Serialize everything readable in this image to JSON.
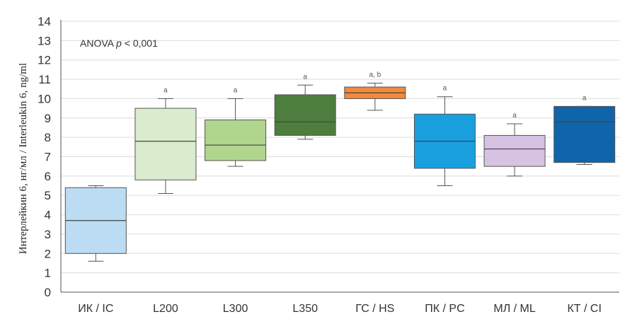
{
  "chart_data": {
    "type": "box",
    "ylabel": "Интерлейкин 6, нг/мл / Interleukin 6, ng/ml",
    "ylim": [
      0,
      14
    ],
    "yticks": [
      0,
      1,
      2,
      3,
      4,
      5,
      6,
      7,
      8,
      9,
      10,
      11,
      12,
      13,
      14
    ],
    "grid": true,
    "annotation": {
      "prefix": "ANOVA ",
      "p_symbol": "p",
      "suffix": " < 0,001"
    },
    "categories": [
      "ИК / IC",
      "L200",
      "L300",
      "L350",
      "ГС / HS",
      "ПК / PC",
      "МЛ / ML",
      "КТ / CI"
    ],
    "boxes": [
      {
        "category": "ИК / IC",
        "min": 1.6,
        "q1": 2.0,
        "median": 3.7,
        "q3": 5.4,
        "max": 5.5,
        "label": "",
        "color": "#bcdcf3"
      },
      {
        "category": "L200",
        "min": 5.1,
        "q1": 5.8,
        "median": 7.8,
        "q3": 9.5,
        "max": 10.0,
        "label": "a",
        "color": "#daeccd"
      },
      {
        "category": "L300",
        "min": 6.5,
        "q1": 6.8,
        "median": 7.6,
        "q3": 8.9,
        "max": 10.0,
        "label": "a",
        "color": "#b0d58d"
      },
      {
        "category": "L350",
        "min": 7.9,
        "q1": 8.1,
        "median": 8.8,
        "q3": 10.2,
        "max": 10.7,
        "label": "a",
        "color": "#4d7e3d"
      },
      {
        "category": "ГС / HS",
        "min": 9.4,
        "q1": 10.0,
        "median": 10.3,
        "q3": 10.6,
        "max": 10.8,
        "label": "a, b",
        "color": "#ef8a3f"
      },
      {
        "category": "ПК / PC",
        "min": 5.5,
        "q1": 6.4,
        "median": 7.8,
        "q3": 9.2,
        "max": 10.1,
        "label": "a",
        "color": "#1a9fde"
      },
      {
        "category": "МЛ / ML",
        "min": 6.0,
        "q1": 6.5,
        "median": 7.4,
        "q3": 8.1,
        "max": 8.7,
        "label": "a",
        "color": "#d6c2e2"
      },
      {
        "category": "КТ / CI",
        "min": 6.6,
        "q1": 6.7,
        "median": 8.8,
        "q3": 9.6,
        "max": 9.6,
        "label": "a",
        "color": "#0f64aa"
      }
    ]
  }
}
